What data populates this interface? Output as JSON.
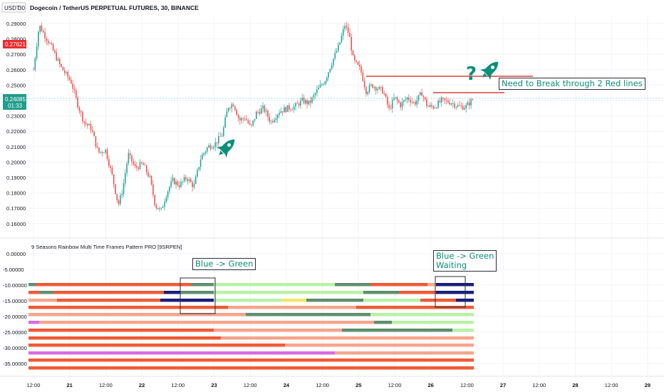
{
  "header": {
    "currency": "USDT",
    "currency_suffix": "30",
    "title": "Dogecoin / TetherUS PERPETUAL FUTURES, 30, BINANCE"
  },
  "price_axis": {
    "ticks": [
      "0.29000",
      "0.28000",
      "0.27000",
      "0.26000",
      "0.25000",
      "0.24000",
      "0.23000",
      "0.22000",
      "0.21000",
      "0.20000",
      "0.19000",
      "0.18000",
      "0.17000",
      "0.16000"
    ],
    "high_label": "0.27621",
    "last_label": "0.24085",
    "countdown": "01:33"
  },
  "indicator": {
    "title": "9 Seasons Rainbow Multi Time Frames Pattern PRO [9SRPEN]",
    "ticks": [
      "0.00000",
      "-5.00000",
      "-10.00000",
      "-15.00000",
      "-20.00000",
      "-25.00000",
      "-30.00000",
      "-35.00000"
    ]
  },
  "time_axis": {
    "labels": [
      "12:00",
      "21",
      "12:00",
      "22",
      "12:00",
      "23",
      "12:00",
      "24",
      "12:00",
      "25",
      "12:00",
      "26",
      "12:00",
      "27",
      "12:00",
      "28",
      "12:00",
      "29"
    ]
  },
  "annotations": {
    "red_lines": "Need to Break through 2 Red lines",
    "question": "?",
    "blue_green": "Blue -> Green",
    "blue_green_waiting": "Blue -> Green\nWaiting"
  },
  "colors": {
    "up": "#26a69a",
    "down": "#ef5350",
    "teal": "#0b8f7a",
    "red_badge": "#ef2b2b",
    "last_badge": "#1f9c8a",
    "resistance": "#d8443b",
    "blue": "#1c1e7a",
    "green": "#5f8f6e",
    "light_green": "#b8f2a4",
    "salmon": "#f6a48c",
    "orange": "#ef5a36",
    "magenta": "#d96ce0",
    "yellow": "#f2e76a"
  },
  "icons": [
    "rocket-icon",
    "rocket-icon"
  ]
}
